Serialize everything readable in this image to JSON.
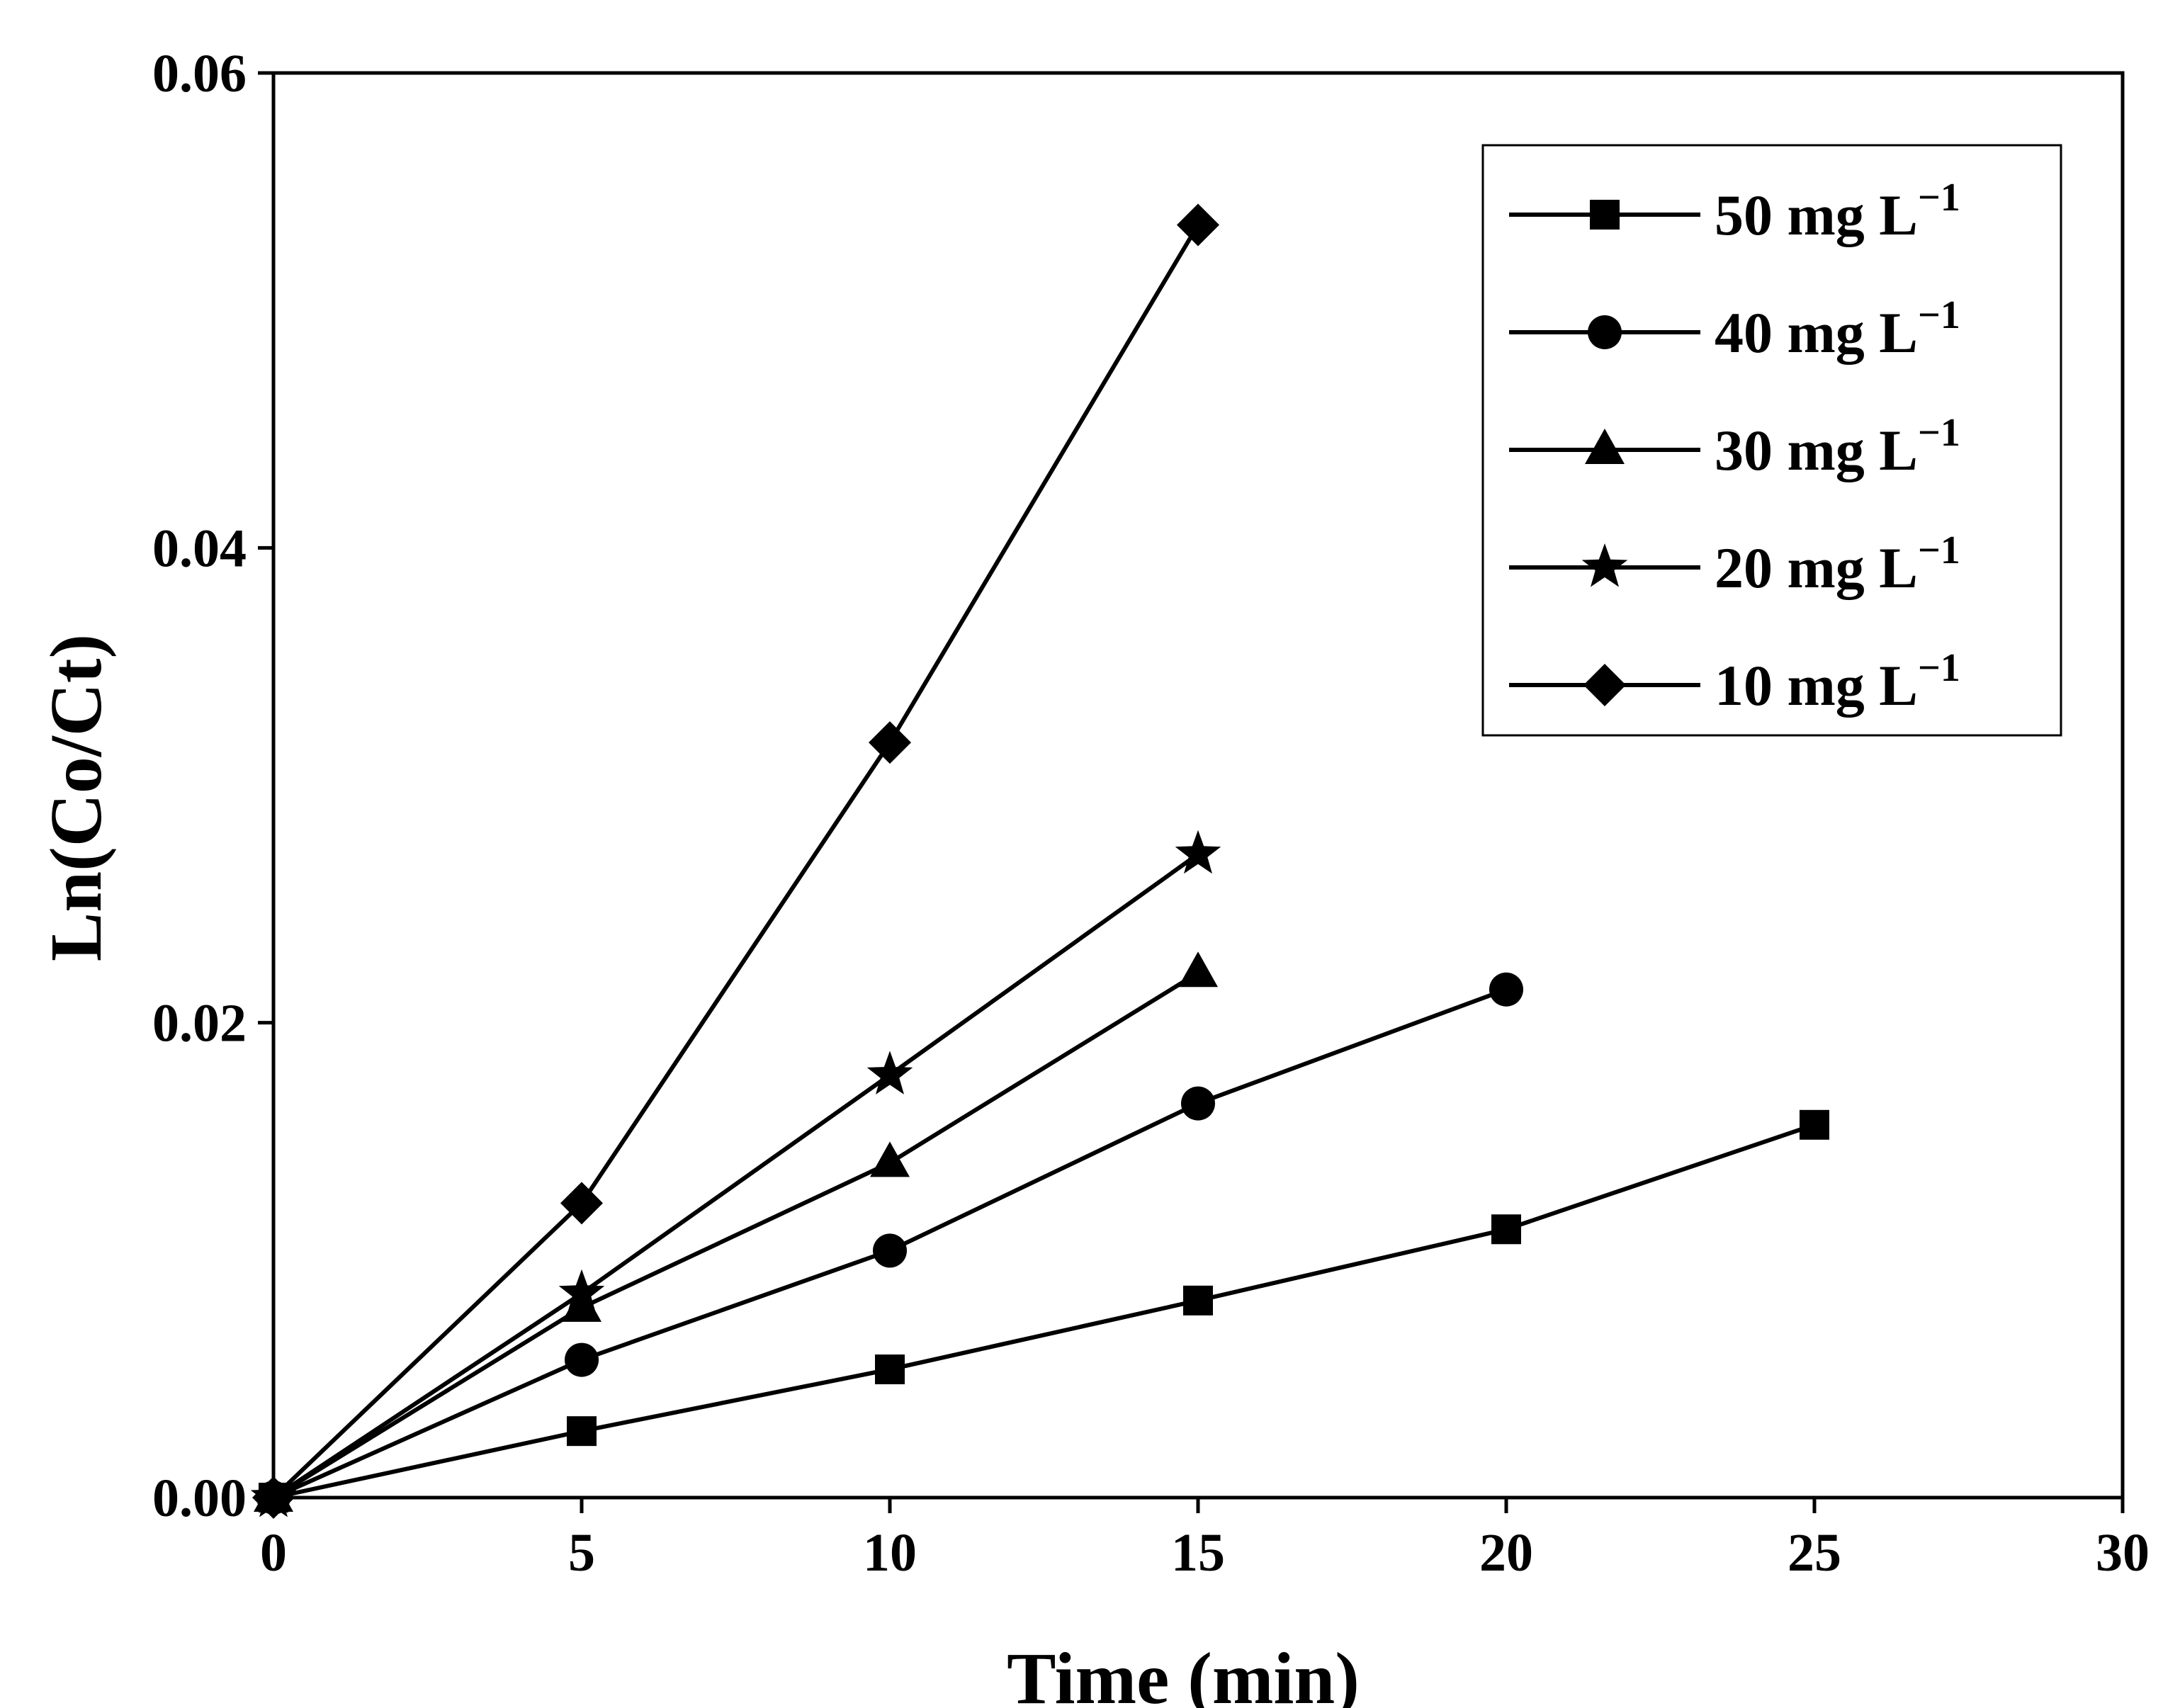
{
  "chart_data": {
    "type": "line",
    "title": "",
    "xlabel": "Time (min)",
    "ylabel": "Ln(Co/Ct)",
    "xlim": [
      0,
      30
    ],
    "ylim": [
      0,
      0.06
    ],
    "xticks": [
      "0",
      "5",
      "10",
      "15",
      "20",
      "25",
      "30"
    ],
    "yticks": [
      "0.00",
      "0.02",
      "0.04",
      "0.06"
    ],
    "grid": false,
    "legend_position": "top-right",
    "series": [
      {
        "name": "50 mg L",
        "unit_sup": "−1",
        "marker": "square",
        "x": [
          0,
          5,
          10,
          15,
          20,
          25
        ],
        "y": [
          0,
          0.0028,
          0.0054,
          0.0083,
          0.0113,
          0.0157
        ]
      },
      {
        "name": "40 mg L",
        "unit_sup": "−1",
        "marker": "circle",
        "x": [
          0,
          5,
          10,
          15,
          20
        ],
        "y": [
          0,
          0.0058,
          0.0104,
          0.0166,
          0.0214
        ]
      },
      {
        "name": "30 mg L",
        "unit_sup": "−1",
        "marker": "triangle",
        "x": [
          0,
          5,
          10,
          15
        ],
        "y": [
          0,
          0.008,
          0.0141,
          0.0221
        ]
      },
      {
        "name": "20 mg L",
        "unit_sup": "−1",
        "marker": "star",
        "x": [
          0,
          5,
          10,
          15
        ],
        "y": [
          0,
          0.0086,
          0.0178,
          0.0271
        ]
      },
      {
        "name": "10 mg L",
        "unit_sup": "−1",
        "marker": "diamond",
        "x": [
          0,
          5,
          10,
          15
        ],
        "y": [
          0,
          0.0124,
          0.0318,
          0.0536
        ]
      }
    ]
  }
}
